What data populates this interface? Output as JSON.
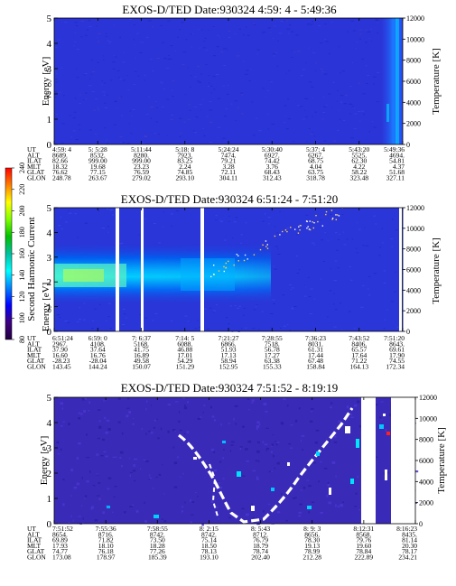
{
  "colorbar": {
    "label": "Second Harmonic Current",
    "ticks": [
      "240",
      "220",
      "200",
      "180",
      "160",
      "140",
      "120",
      "100",
      "80"
    ],
    "colors": [
      "#ff0000",
      "#ff8000",
      "#ffff00",
      "#80ff00",
      "#00c000",
      "#00c0a0",
      "#00ffff",
      "#0080ff",
      "#0000ff",
      "#400080",
      "#200040"
    ]
  },
  "chart_data": [
    {
      "type": "heatmap",
      "title": "EXOS-D/TED   Date:930324  4:59: 4 - 5:49:36",
      "ylabel": "Energy [eV]",
      "y2label": "Temperature [K]",
      "ylim": [
        0,
        5
      ],
      "y2lim": [
        0,
        12000
      ],
      "yticks": [
        "0",
        "1",
        "2",
        "3",
        "4",
        "5"
      ],
      "y2ticks": [
        "0",
        "2000",
        "4000",
        "6000",
        "8000",
        "10000",
        "12000"
      ],
      "ephemeris": {
        "labels": [
          "UT",
          "ALT",
          "ILAT",
          "MLT",
          "GLAT",
          "GLON"
        ],
        "columns": [
          [
            "4:59: 4",
            "8689.",
            "82.66",
            "18.32",
            "76.62",
            "248.78"
          ],
          [
            "5: 5:28",
            "8532.",
            "999.00",
            "19.68",
            "77.15",
            "263.67"
          ],
          [
            "5:11:44",
            "8280.",
            "999.00",
            "23.23",
            "76.59",
            "279.02"
          ],
          [
            "5:18: 8",
            "7923.",
            "83.25",
            "2.24",
            "74.85",
            "293.10"
          ],
          [
            "5:24:24",
            "7474.",
            "79.21",
            "3.28",
            "72.11",
            "304.11"
          ],
          [
            "5:30:40",
            "6927.",
            "74.42",
            "3.76",
            "68.43",
            "312.43"
          ],
          [
            "5:37: 4",
            "6267.",
            "68.75",
            "4.04",
            "63.75",
            "318.78"
          ],
          [
            "5:43:20",
            "5525.",
            "62.30",
            "4.22",
            "58.22",
            "323.48"
          ],
          [
            "5:49:36",
            "4694.",
            "54.81",
            "4.37",
            "51.68",
            "327.11"
          ]
        ]
      }
    },
    {
      "type": "heatmap",
      "title": "EXOS-D/TED   Date:930324  6:51:24 - 7:51:20",
      "ylabel": "Energy [eV]",
      "y2label": "Temperature [K]",
      "ylim": [
        0,
        5
      ],
      "y2lim": [
        0,
        12000
      ],
      "yticks": [
        "0",
        "1",
        "2",
        "3",
        "4",
        "5"
      ],
      "y2ticks": [
        "0",
        "2000",
        "4000",
        "6000",
        "8000",
        "10000",
        "12000"
      ],
      "ephemeris": {
        "labels": [
          "UT",
          "ALT",
          "ILAT",
          "MLT",
          "GLAT",
          "GLON"
        ],
        "columns": [
          [
            "6:51:24",
            "2967.",
            "37.90",
            "16.60",
            "-28.23",
            "143.45"
          ],
          [
            "6:59: 0",
            "4108.",
            "37.64",
            "16.76",
            "-28.04",
            "144.24"
          ],
          [
            "7: 6:37",
            "5168.",
            "41.75",
            "16.89",
            "49.58",
            "150.07"
          ],
          [
            "7:14: 5",
            "6088.",
            "46.88",
            "17.01",
            "54.29",
            "151.29"
          ],
          [
            "7:21:27",
            "6866.",
            "51.93",
            "17.13",
            "58.94",
            "152.95"
          ],
          [
            "7:28:55",
            "7518.",
            "56.78",
            "17.27",
            "63.38",
            "155.33"
          ],
          [
            "7:36:23",
            "8031.",
            "61.31",
            "17.44",
            "67.48",
            "158.84"
          ],
          [
            "7:43:52",
            "8406.",
            "65.57",
            "17.64",
            "71.22",
            "164.13"
          ],
          [
            "7:51:20",
            "8643.",
            "69.61",
            "17.90",
            "74.55",
            "172.34"
          ]
        ]
      }
    },
    {
      "type": "heatmap",
      "title": "EXOS-D/TED   Date:930324  7:51:52 - 8:19:19",
      "ylabel": "Energy [eV]",
      "y2label": "Temperature [K]",
      "ylim": [
        0,
        5
      ],
      "y2lim": [
        0,
        12000
      ],
      "yticks": [
        "0",
        "1",
        "2",
        "3",
        "4",
        "5"
      ],
      "y2ticks": [
        "0",
        "2000",
        "4000",
        "6000",
        "8000",
        "10000",
        "12000"
      ],
      "ephemeris": {
        "labels": [
          "UT",
          "ALT",
          "ILAT",
          "MLT",
          "GLAT",
          "GLON"
        ],
        "columns": [
          [
            "7:51:52",
            "8654.",
            "69.89",
            "17.93",
            "74.77",
            "173.08"
          ],
          [
            "7:55:36",
            "8716.",
            "71.82",
            "18.10",
            "76.18",
            "178.97"
          ],
          [
            "7:58:55",
            "8742.",
            "73.50",
            "18.28",
            "77.26",
            "185.39"
          ],
          [
            "8: 2:15",
            "8742.",
            "75.14",
            "18.50",
            "78.13",
            "193.10"
          ],
          [
            "8: 5:43",
            "8712.",
            "76.79",
            "18.79",
            "78.74",
            "202.40"
          ],
          [
            "8: 9: 3",
            "8656.",
            "78.30",
            "19.13",
            "78.99",
            "212.28"
          ],
          [
            "8:12:31",
            "8568.",
            "79.76",
            "19.60",
            "78.84",
            "222.89"
          ],
          [
            "8:16:23",
            "8435.",
            "81.14",
            "20.30",
            "78.17",
            "234.21"
          ]
        ]
      }
    }
  ]
}
